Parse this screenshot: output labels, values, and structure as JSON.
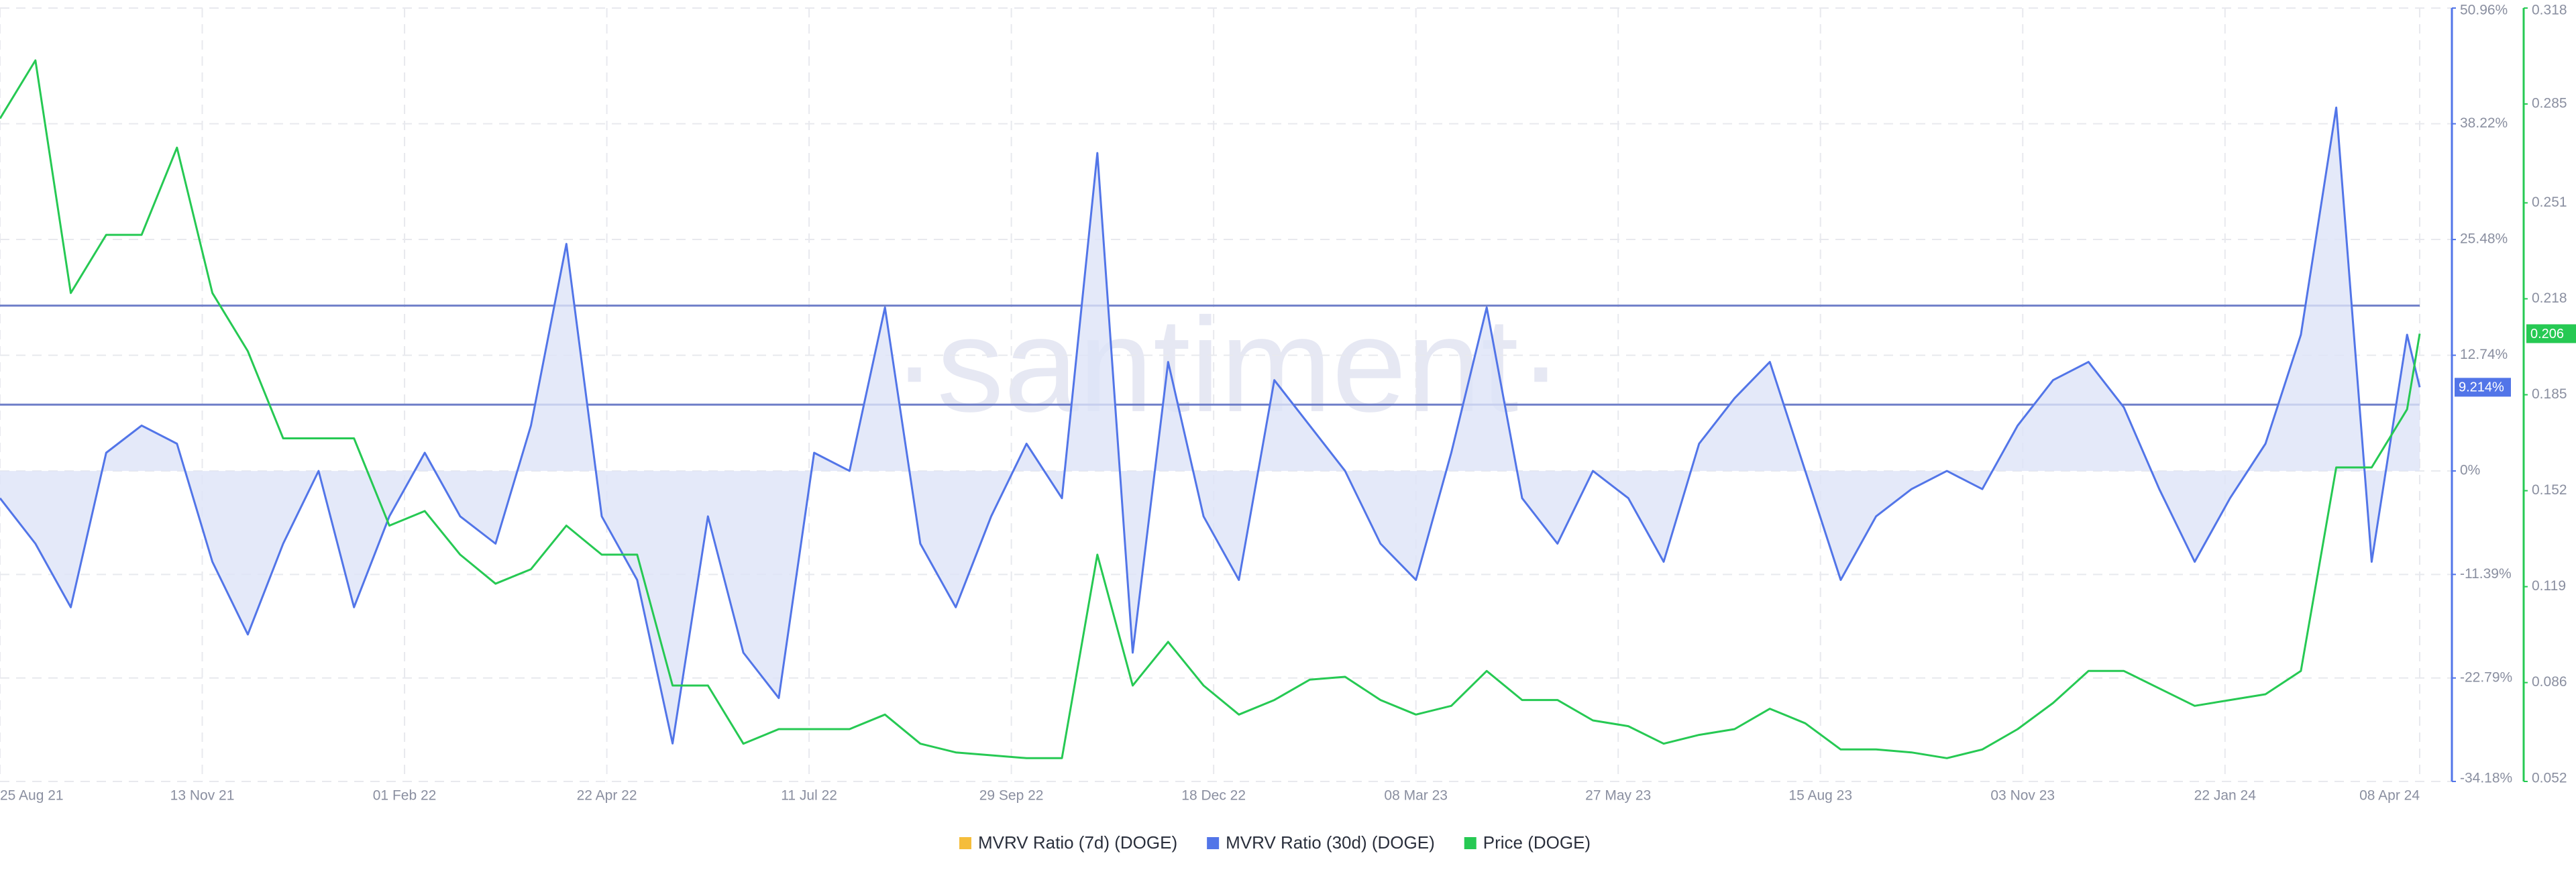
{
  "chart_data": {
    "type": "line",
    "watermark": "·santiment·",
    "xlim": [
      "2021-08-25",
      "2024-04-08"
    ],
    "xticks": [
      {
        "value": "2021-08-25",
        "label": "25 Aug 21"
      },
      {
        "value": "2021-11-13",
        "label": "13 Nov 21"
      },
      {
        "value": "2022-02-01",
        "label": "01 Feb 22"
      },
      {
        "value": "2022-04-22",
        "label": "22 Apr 22"
      },
      {
        "value": "2022-07-11",
        "label": "11 Jul 22"
      },
      {
        "value": "2022-09-29",
        "label": "29 Sep 22"
      },
      {
        "value": "2022-12-18",
        "label": "18 Dec 22"
      },
      {
        "value": "2023-03-08",
        "label": "08 Mar 23"
      },
      {
        "value": "2023-05-27",
        "label": "27 May 23"
      },
      {
        "value": "2023-08-15",
        "label": "15 Aug 23"
      },
      {
        "value": "2023-11-03",
        "label": "03 Nov 23"
      },
      {
        "value": "2024-01-22",
        "label": "22 Jan 24"
      },
      {
        "value": "2024-04-08",
        "label": "08 Apr 24"
      }
    ],
    "ylim": [
      -34.18,
      50.96
    ],
    "yticks": [
      {
        "value": 50.96,
        "label": "50.96%"
      },
      {
        "value": 38.22,
        "label": "38.22%"
      },
      {
        "value": 25.48,
        "label": "25.48%"
      },
      {
        "value": 12.74,
        "label": "12.74%"
      },
      {
        "value": 0,
        "label": "0%"
      },
      {
        "value": -11.39,
        "label": "-11.39%"
      },
      {
        "value": -22.79,
        "label": "-22.79%"
      },
      {
        "value": -34.18,
        "label": "-34.18%"
      }
    ],
    "y2lim": [
      0.052,
      0.318
    ],
    "y2ticks": [
      0.318,
      0.285,
      0.251,
      0.218,
      0.185,
      0.152,
      0.119,
      0.086,
      0.052
    ],
    "grid": true,
    "hlines": [
      18.2,
      7.3
    ],
    "x": [
      "2021-08-25",
      "2021-09-08",
      "2021-09-22",
      "2021-10-06",
      "2021-10-20",
      "2021-11-03",
      "2021-11-17",
      "2021-12-01",
      "2021-12-15",
      "2021-12-29",
      "2022-01-12",
      "2022-01-26",
      "2022-02-09",
      "2022-02-23",
      "2022-03-09",
      "2022-03-23",
      "2022-04-06",
      "2022-04-20",
      "2022-05-04",
      "2022-05-18",
      "2022-06-01",
      "2022-06-15",
      "2022-06-29",
      "2022-07-13",
      "2022-07-27",
      "2022-08-10",
      "2022-08-24",
      "2022-09-07",
      "2022-09-21",
      "2022-10-05",
      "2022-10-19",
      "2022-11-02",
      "2022-11-16",
      "2022-11-30",
      "2022-12-14",
      "2022-12-28",
      "2023-01-11",
      "2023-01-25",
      "2023-02-08",
      "2023-02-22",
      "2023-03-08",
      "2023-03-22",
      "2023-04-05",
      "2023-04-19",
      "2023-05-03",
      "2023-05-17",
      "2023-05-31",
      "2023-06-14",
      "2023-06-28",
      "2023-07-12",
      "2023-07-26",
      "2023-08-09",
      "2023-08-23",
      "2023-09-06",
      "2023-09-20",
      "2023-10-04",
      "2023-10-18",
      "2023-11-01",
      "2023-11-15",
      "2023-11-29",
      "2023-12-13",
      "2023-12-27",
      "2024-01-10",
      "2024-01-24",
      "2024-02-07",
      "2024-02-21",
      "2024-03-06",
      "2024-03-20",
      "2024-04-03",
      "2024-04-08"
    ],
    "series": [
      {
        "name": "MVRV Ratio (7d) (DOGE)",
        "color": "#f5bd3b"
      },
      {
        "name": "MVRV Ratio (30d) (DOGE)",
        "color": "#5275e8",
        "fill": "#dde4f8",
        "values": [
          -3,
          -8,
          -15,
          2,
          5,
          3,
          -10,
          -18,
          -8,
          0,
          -15,
          -5,
          2,
          -5,
          -8,
          5,
          25,
          -5,
          -12,
          -30,
          -5,
          -20,
          -25,
          2,
          0,
          18,
          -8,
          -15,
          -5,
          3,
          -3,
          35,
          -20,
          12,
          -5,
          -12,
          10,
          5,
          0,
          -8,
          -12,
          2,
          18,
          -3,
          -8,
          0,
          -3,
          -10,
          3,
          8,
          12,
          0,
          -12,
          -5,
          -2,
          0,
          -2,
          5,
          10,
          12,
          7,
          -2,
          -10,
          -3,
          3,
          15,
          40,
          -10,
          15,
          9.214
        ],
        "last_label": {
          "value": 9.214,
          "label": "9.214%"
        }
      },
      {
        "name": "Price (DOGE)",
        "color": "#26c953",
        "axis": "y2",
        "values": [
          0.28,
          0.3,
          0.22,
          0.24,
          0.24,
          0.27,
          0.22,
          0.2,
          0.17,
          0.17,
          0.17,
          0.14,
          0.145,
          0.13,
          0.12,
          0.125,
          0.14,
          0.13,
          0.13,
          0.085,
          0.085,
          0.065,
          0.07,
          0.07,
          0.07,
          0.075,
          0.065,
          0.062,
          0.061,
          0.06,
          0.06,
          0.13,
          0.085,
          0.1,
          0.085,
          0.075,
          0.08,
          0.087,
          0.088,
          0.08,
          0.075,
          0.078,
          0.09,
          0.08,
          0.08,
          0.073,
          0.071,
          0.065,
          0.068,
          0.07,
          0.077,
          0.072,
          0.063,
          0.063,
          0.062,
          0.06,
          0.063,
          0.07,
          0.079,
          0.09,
          0.09,
          0.084,
          0.078,
          0.08,
          0.082,
          0.09,
          0.16,
          0.16,
          0.18,
          0.206
        ],
        "last_label": {
          "value": 0.206,
          "label": "0.206"
        }
      }
    ]
  }
}
